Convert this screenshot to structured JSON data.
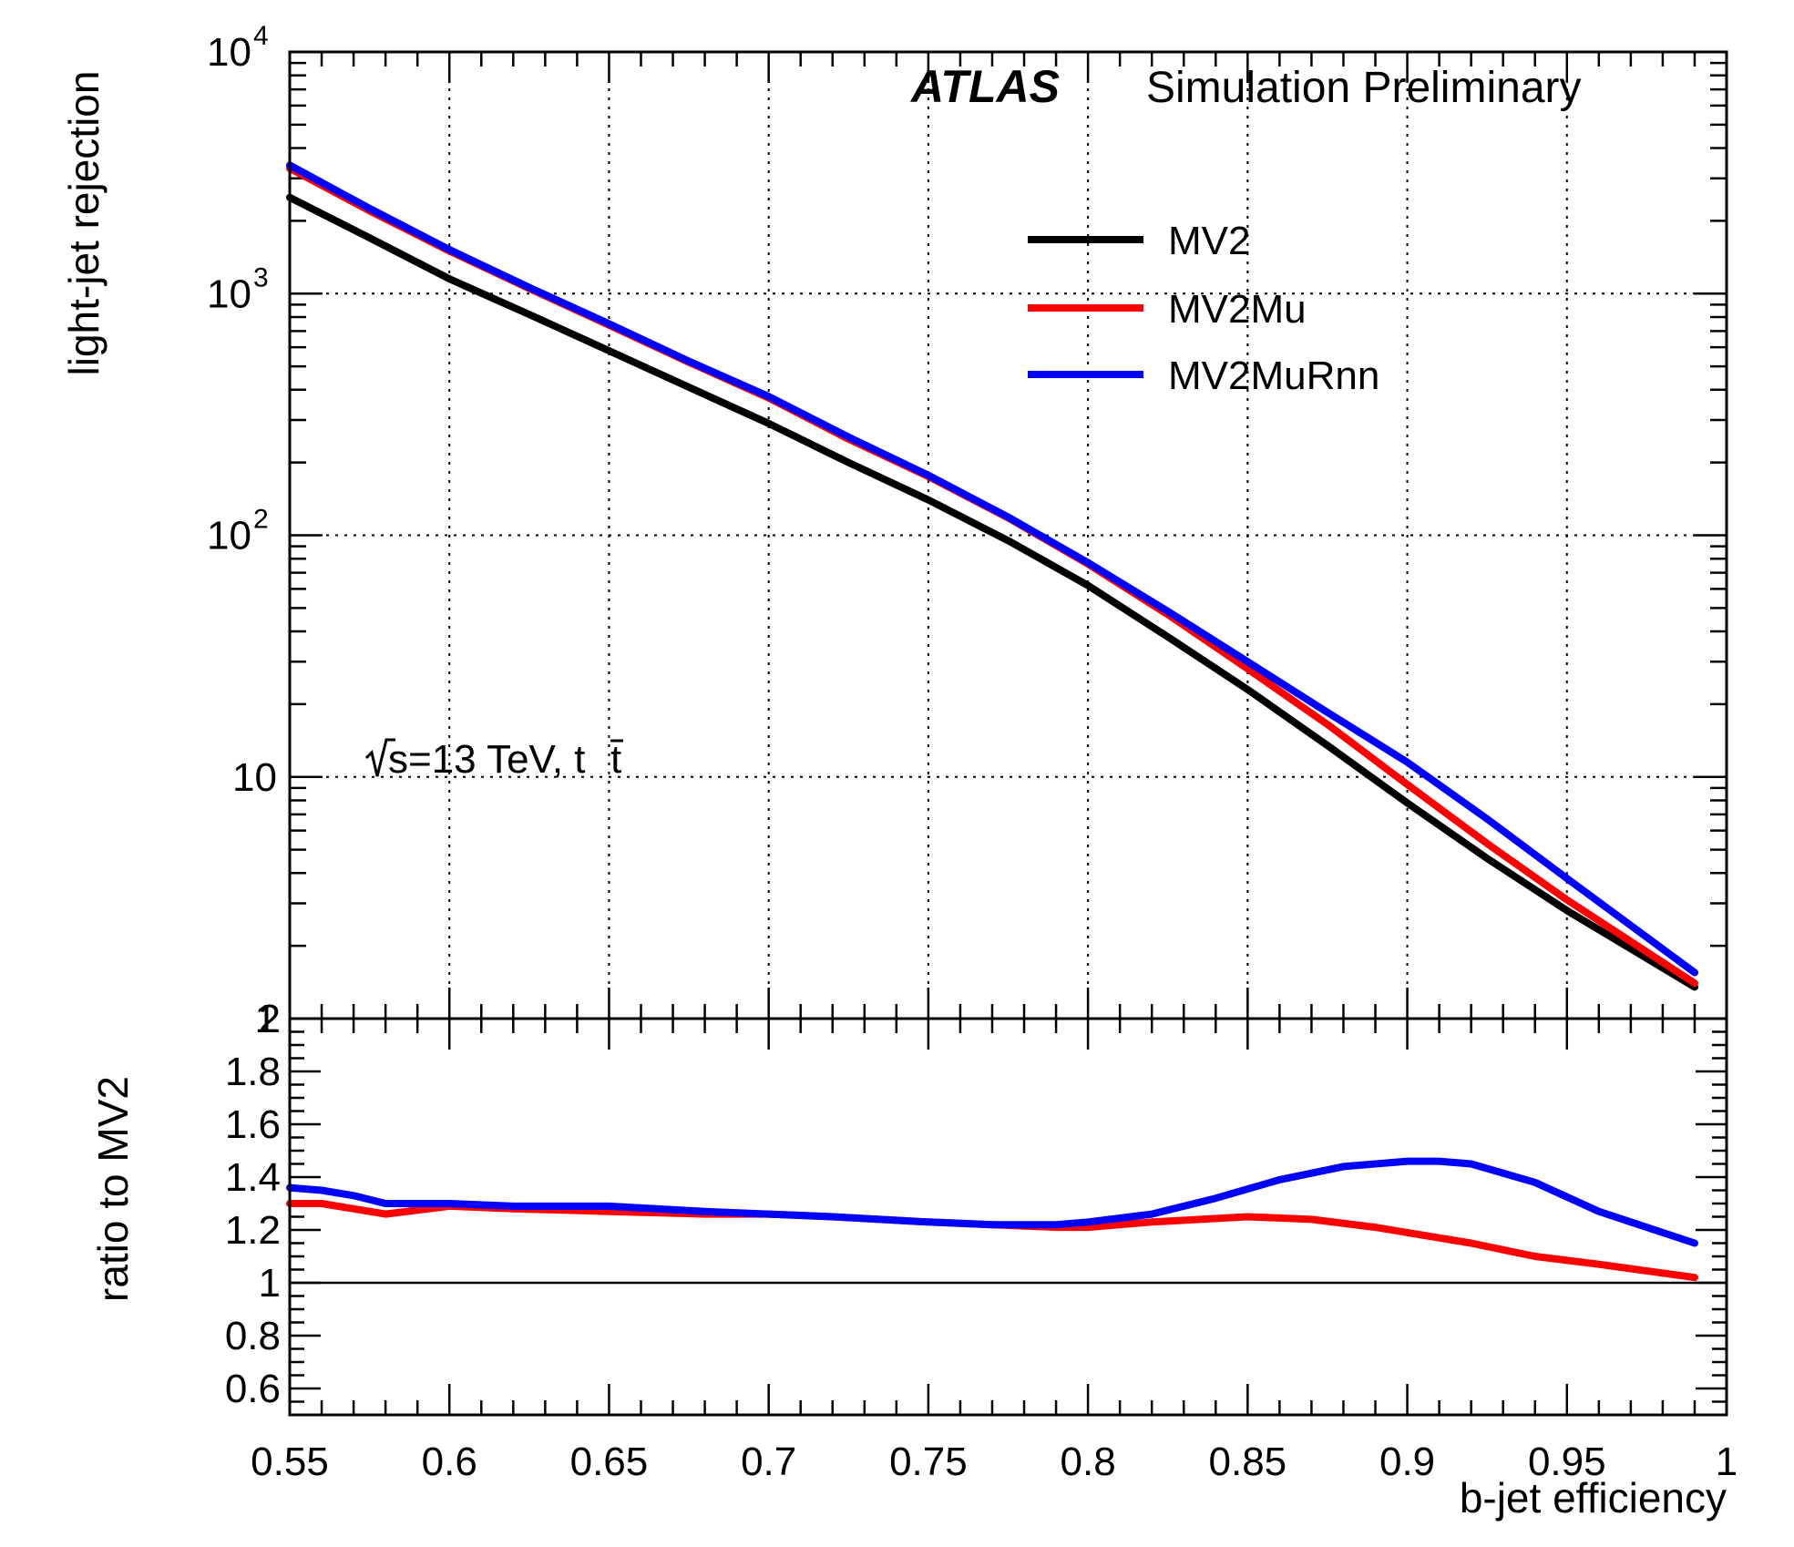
{
  "colors": {
    "MV2": "#000000",
    "MV2Mu": "#ff0000",
    "MV2MuRnn": "#0000ff"
  },
  "annotations": {
    "experiment": "ATLAS",
    "status": "Simulation Preliminary",
    "energy_pre": "s=13 TeV, t",
    "energy_bar": "t"
  },
  "chart_data": [
    {
      "type": "line",
      "panel": "upper",
      "ylabel": "light-jet rejection",
      "yscale": "log",
      "xlim": [
        0.55,
        1.0
      ],
      "ylim": [
        1,
        10000
      ],
      "grid": true,
      "legend_placement": "top-right",
      "y_ticks": [
        {
          "value": 1,
          "base": "1",
          "exp": ""
        },
        {
          "value": 10,
          "base": "10",
          "exp": ""
        },
        {
          "value": 100,
          "base": "10",
          "exp": "2"
        },
        {
          "value": 1000,
          "base": "10",
          "exp": "3"
        },
        {
          "value": 10000,
          "base": "10",
          "exp": "4"
        }
      ],
      "series": [
        {
          "name": "MV2",
          "x": [
            0.55,
            0.575,
            0.6,
            0.625,
            0.65,
            0.675,
            0.7,
            0.725,
            0.75,
            0.775,
            0.8,
            0.825,
            0.85,
            0.875,
            0.9,
            0.925,
            0.95,
            0.99
          ],
          "y": [
            2500,
            1700,
            1150,
            820,
            580,
            410,
            290,
            200,
            140,
            95,
            62,
            38,
            23,
            13.5,
            7.8,
            4.6,
            2.8,
            1.35
          ]
        },
        {
          "name": "MV2Mu",
          "x": [
            0.55,
            0.575,
            0.6,
            0.625,
            0.65,
            0.675,
            0.7,
            0.725,
            0.75,
            0.775,
            0.8,
            0.825,
            0.85,
            0.875,
            0.9,
            0.925,
            0.95,
            0.99
          ],
          "y": [
            3300,
            2200,
            1500,
            1050,
            740,
            520,
            370,
            250,
            175,
            118,
            76,
            47,
            28,
            16.5,
            9.3,
            5.3,
            3.1,
            1.4
          ]
        },
        {
          "name": "MV2MuRnn",
          "x": [
            0.55,
            0.575,
            0.6,
            0.625,
            0.65,
            0.675,
            0.7,
            0.725,
            0.75,
            0.775,
            0.8,
            0.825,
            0.85,
            0.875,
            0.9,
            0.925,
            0.95,
            0.99
          ],
          "y": [
            3400,
            2250,
            1520,
            1060,
            750,
            525,
            375,
            255,
            177,
            119,
            77,
            48.5,
            30,
            18.5,
            11.5,
            6.7,
            3.8,
            1.55
          ]
        }
      ]
    },
    {
      "type": "line",
      "panel": "lower",
      "xlabel": "b-jet efficiency",
      "ylabel": "ratio to MV2",
      "xlim": [
        0.55,
        1.0
      ],
      "ylim": [
        0.5,
        2.0
      ],
      "x_ticks": [
        "0.55",
        "0.6",
        "0.65",
        "0.7",
        "0.75",
        "0.8",
        "0.85",
        "0.9",
        "0.95",
        "1"
      ],
      "y_ticks": [
        "0.6",
        "0.8",
        "1",
        "1.2",
        "1.4",
        "1.6",
        "1.8",
        "2"
      ],
      "reference_line": 1.0,
      "series": [
        {
          "name": "MV2Mu",
          "x": [
            0.55,
            0.56,
            0.57,
            0.58,
            0.6,
            0.62,
            0.65,
            0.68,
            0.7,
            0.72,
            0.75,
            0.77,
            0.79,
            0.8,
            0.82,
            0.85,
            0.87,
            0.89,
            0.9,
            0.92,
            0.94,
            0.96,
            0.99
          ],
          "y": [
            1.3,
            1.3,
            1.28,
            1.26,
            1.29,
            1.28,
            1.27,
            1.26,
            1.26,
            1.25,
            1.23,
            1.22,
            1.21,
            1.21,
            1.23,
            1.25,
            1.24,
            1.21,
            1.19,
            1.15,
            1.1,
            1.07,
            1.02
          ]
        },
        {
          "name": "MV2MuRnn",
          "x": [
            0.55,
            0.56,
            0.57,
            0.58,
            0.6,
            0.62,
            0.65,
            0.68,
            0.7,
            0.72,
            0.75,
            0.77,
            0.79,
            0.8,
            0.82,
            0.84,
            0.86,
            0.88,
            0.9,
            0.91,
            0.92,
            0.94,
            0.96,
            0.99
          ],
          "y": [
            1.36,
            1.35,
            1.33,
            1.3,
            1.3,
            1.29,
            1.29,
            1.27,
            1.26,
            1.25,
            1.23,
            1.22,
            1.22,
            1.23,
            1.26,
            1.32,
            1.39,
            1.44,
            1.46,
            1.46,
            1.45,
            1.38,
            1.27,
            1.15
          ]
        }
      ]
    }
  ]
}
